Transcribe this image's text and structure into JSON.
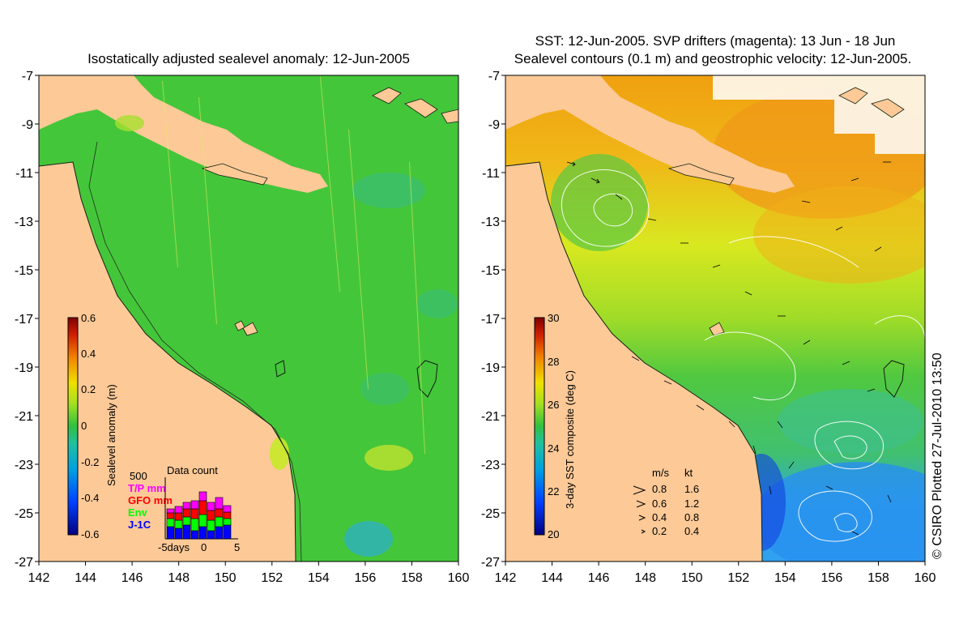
{
  "left_panel": {
    "title": "Isostatically adjusted sealevel anomaly: 12-Jun-2005",
    "colorbar": {
      "label": "Sealevel anomaly (m)",
      "ticks": [
        "0.6",
        "0.4",
        "0.2",
        "0",
        "-0.2",
        "-0.4",
        "-0.6"
      ],
      "range": [
        -0.6,
        0.6
      ]
    },
    "data_count": {
      "title": "Data count",
      "max_label": "500",
      "legend": [
        {
          "label": "T/P mm",
          "color": "#ff00ff"
        },
        {
          "label": "GFO mm",
          "color": "#ff0000"
        },
        {
          "label": "Env",
          "color": "#00ff00"
        },
        {
          "label": "J-1C",
          "color": "#0000ff"
        }
      ],
      "axis_labels": [
        "-5days",
        "0",
        "5"
      ]
    }
  },
  "right_panel": {
    "title_line1": "SST: 12-Jun-2005. SVP drifters (magenta): 13 Jun - 18 Jun",
    "title_line2": "Sealevel contours (0.1 m) and geostrophic velocity: 12-Jun-2005.",
    "colorbar": {
      "label": "3-day SST composite (deg C)",
      "ticks": [
        "30",
        "28",
        "26",
        "24",
        "22",
        "20"
      ],
      "range": [
        20,
        30
      ]
    },
    "speed_legend": {
      "header_ms": "m/s",
      "header_kt": "kt",
      "rows": [
        {
          "ms": "0.8",
          "kt": "1.6"
        },
        {
          "ms": "0.6",
          "kt": "1.2"
        },
        {
          "ms": "0.4",
          "kt": "0.8"
        },
        {
          "ms": "0.2",
          "kt": "0.4"
        }
      ]
    }
  },
  "axes": {
    "x_ticks": [
      "142",
      "144",
      "146",
      "148",
      "150",
      "152",
      "154",
      "156",
      "158",
      "160"
    ],
    "y_ticks": [
      "-7",
      "-9",
      "-11",
      "-13",
      "-15",
      "-17",
      "-19",
      "-21",
      "-23",
      "-25",
      "-27"
    ],
    "lon_range": [
      142,
      160
    ],
    "lat_range": [
      -27,
      -7
    ]
  },
  "credit": "© CSIRO Plotted 27-Jul-2010 13:50",
  "colors": {
    "land": "#fcc997",
    "sla_ocean": "#44c63a",
    "sst_warm": "#f0a010",
    "sst_mid": "#d8e820",
    "sst_green": "#50c840",
    "sst_cool": "#30a0f0"
  }
}
